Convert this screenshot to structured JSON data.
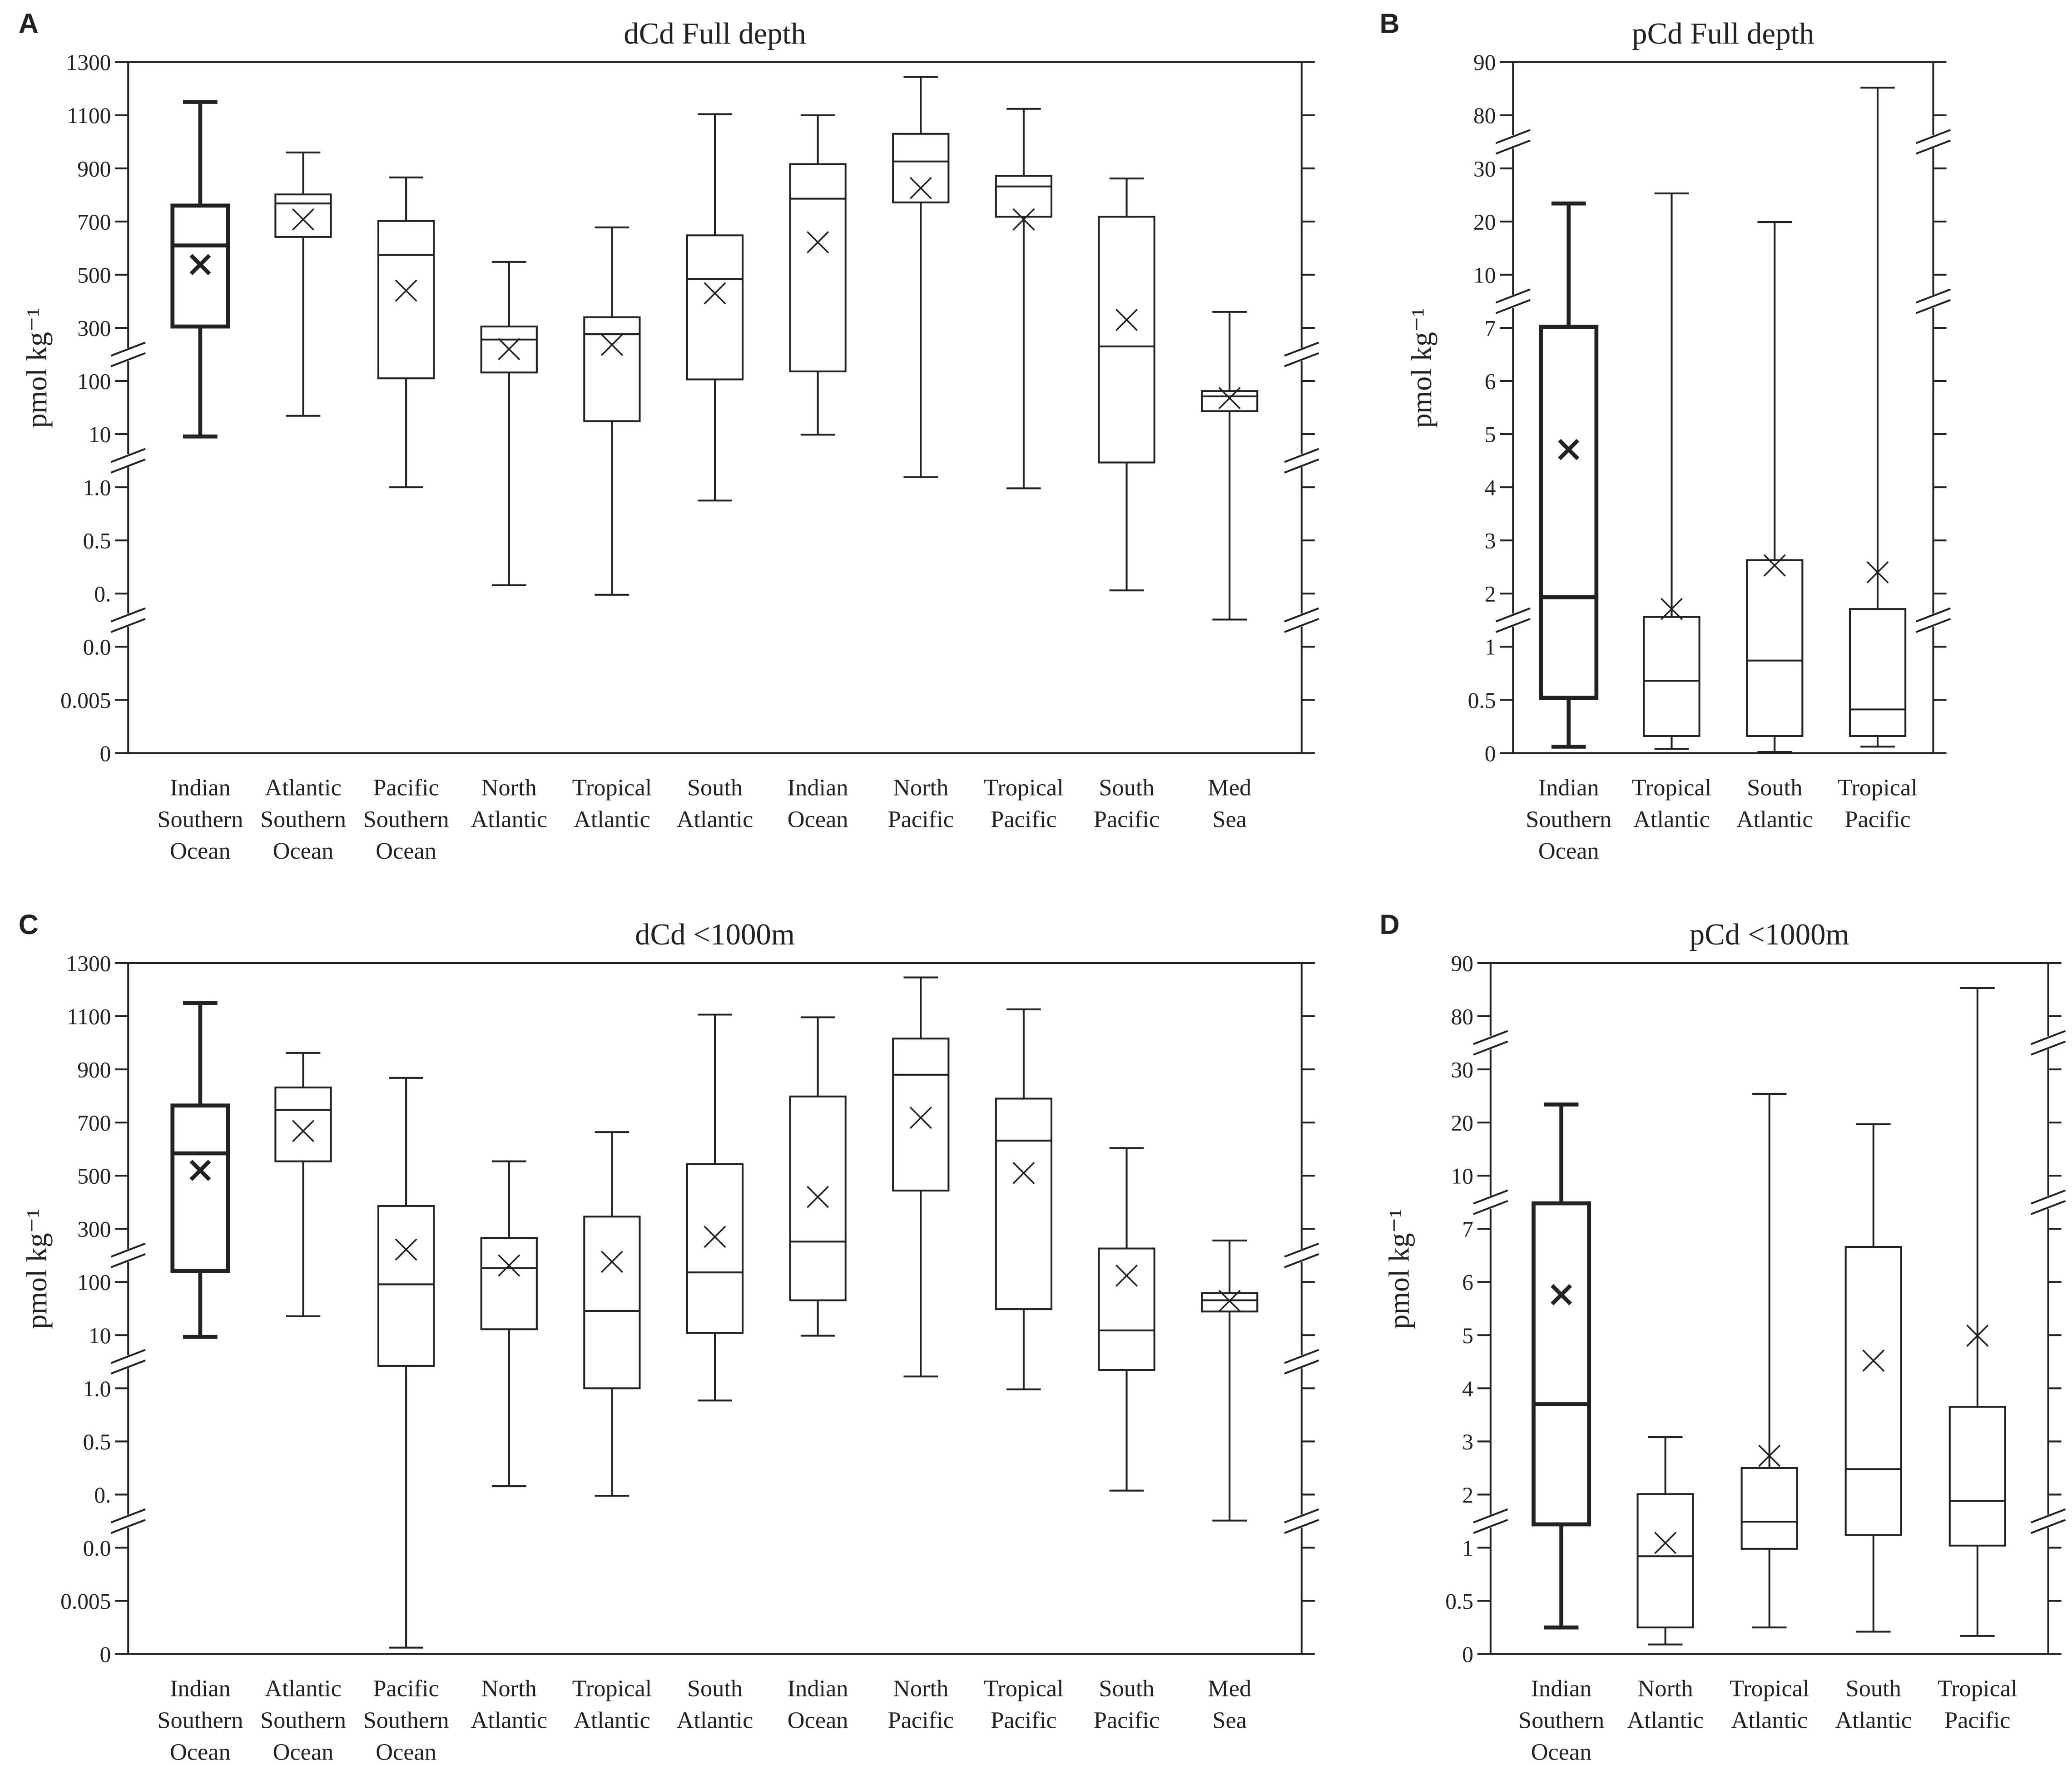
{
  "chart_data": [
    {
      "type": "box",
      "label": "A",
      "title": "dCd Full depth",
      "ylabel": "pmol kg⁻¹",
      "categories": [
        "Indian Southern Ocean",
        "Atlantic Southern Ocean",
        "Pacific Southern Ocean",
        "North Atlantic",
        "Tropical Atlantic",
        "South Atlantic",
        "Indian Ocean",
        "North Pacific",
        "Tropical Pacific",
        "South Pacific",
        "Med Sea"
      ],
      "max": [
        1150,
        960,
        866,
        548,
        678,
        1104,
        1100,
        1244,
        1124,
        862,
        360
      ],
      "q3": [
        760,
        802,
        702,
        305,
        340,
        648,
        916,
        1030,
        872,
        718,
        83
      ],
      "median": [
        610,
        768,
        574,
        256,
        276,
        484,
        786,
        926,
        832,
        230,
        74
      ],
      "q1": [
        305,
        642,
        110,
        132,
        32,
        106,
        136,
        772,
        718,
        5.2,
        49
      ],
      "min": [
        9.6,
        41,
        1.0,
        0.163,
        0.098,
        0.875,
        9.9,
        2.7,
        0.99,
        0.124,
        0.056
      ],
      "mean": [
        538,
        708,
        440,
        220,
        236,
        430,
        622,
        826,
        708,
        330,
        71
      ],
      "emphasized": 0,
      "ylim": [
        0,
        1300
      ],
      "yticks": [
        0,
        0.005,
        {
          "value": 0.01,
          "label": "0.0"
        },
        {
          "value": 0.1,
          "label": "0."
        },
        0.5,
        {
          "value": 1,
          "label": "1.0"
        },
        10,
        100,
        300,
        500,
        700,
        900,
        1100,
        1300
      ]
    },
    {
      "type": "box",
      "label": "B",
      "title": "pCd Full depth",
      "ylabel": "pmol kg⁻¹",
      "categories": [
        "Indian Southern Ocean",
        "Tropical Atlantic",
        "South Atlantic",
        "Tropical Pacific"
      ],
      "max": [
        23.4,
        25.3,
        19.9,
        85.2
      ],
      "q3": [
        7.06,
        1.56,
        2.63,
        1.71
      ],
      "median": [
        1.93,
        0.68,
        0.87,
        0.41
      ],
      "q1": [
        0.52,
        0.16,
        0.16,
        0.16
      ],
      "min": [
        0.06,
        0.04,
        0.01,
        0.06
      ],
      "mean": [
        4.71,
        1.71,
        2.53,
        2.4
      ],
      "emphasized": 0,
      "ylim": [
        0,
        90
      ],
      "yticks": [
        0,
        0.5,
        1,
        2,
        3,
        4,
        5,
        6,
        7,
        10,
        20,
        30,
        80,
        90
      ]
    },
    {
      "type": "box",
      "label": "C",
      "title": "dCd <1000m",
      "ylabel": "pmol kg⁻¹",
      "categories": [
        "Indian Southern Ocean",
        "Atlantic Southern Ocean",
        "Pacific Southern Ocean",
        "North Atlantic",
        "Tropical Atlantic",
        "South Atlantic",
        "Indian Ocean",
        "North Pacific",
        "Tropical Pacific",
        "South Pacific",
        "Med Sea"
      ],
      "max": [
        1150,
        962,
        868,
        554,
        664,
        1106,
        1096,
        1246,
        1126,
        604,
        256
      ],
      "q3": [
        764,
        832,
        386,
        266,
        346,
        544,
        798,
        1016,
        790,
        226,
        81
      ],
      "median": [
        584,
        748,
        96,
        152,
        51,
        136,
        252,
        880,
        632,
        18,
        69
      ],
      "q1": [
        142,
        554,
        4.8,
        20,
        1.0,
        13.6,
        69,
        444,
        54,
        4.1,
        50
      ],
      "min": [
        9.7,
        42,
        0.0006,
        0.163,
        0.098,
        0.885,
        9.9,
        3.0,
        0.99,
        0.13,
        0.056
      ],
      "mean": [
        520,
        668,
        222,
        162,
        176,
        270,
        420,
        718,
        510,
        124,
        68
      ],
      "emphasized": 0,
      "ylim": [
        0,
        1300
      ],
      "yticks": [
        0,
        0.005,
        {
          "value": 0.01,
          "label": "0.0"
        },
        {
          "value": 0.1,
          "label": "0."
        },
        0.5,
        {
          "value": 1,
          "label": "1.0"
        },
        10,
        100,
        300,
        500,
        700,
        900,
        1100,
        1300
      ]
    },
    {
      "type": "box",
      "label": "D",
      "title": "pCd <1000m",
      "ylabel": "pmol kg⁻¹",
      "categories": [
        "Indian Southern Ocean",
        "North Atlantic",
        "Tropical Atlantic",
        "South Atlantic",
        "Tropical Pacific"
      ],
      "max": [
        23.4,
        3.08,
        25.4,
        19.7,
        85.3
      ],
      "q3": [
        8.44,
        2.01,
        2.5,
        6.66,
        3.65
      ],
      "median": [
        3.7,
        0.92,
        1.49,
        2.48,
        1.88
      ],
      "q1": [
        1.44,
        0.25,
        0.99,
        1.24,
        1.04
      ],
      "min": [
        0.25,
        0.09,
        0.25,
        0.21,
        0.17
      ],
      "mean": [
        5.76,
        1.09,
        2.73,
        4.52,
        4.99
      ],
      "emphasized": 0,
      "ylim": [
        0,
        90
      ],
      "yticks": [
        0,
        0.5,
        1,
        2,
        3,
        4,
        5,
        6,
        7,
        10,
        20,
        30,
        80,
        90
      ]
    }
  ]
}
